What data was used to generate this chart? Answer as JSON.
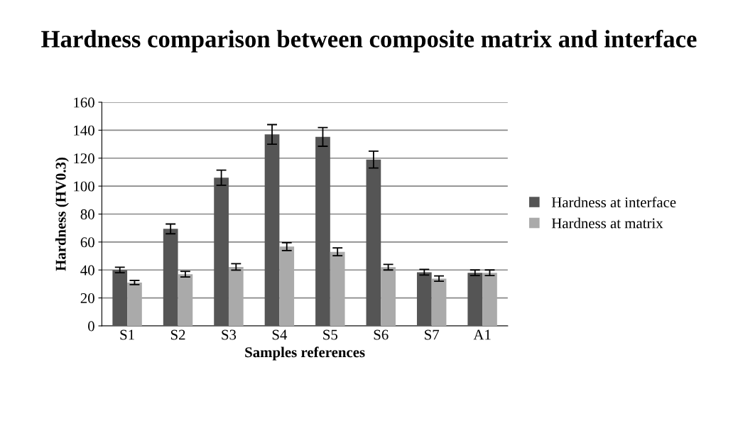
{
  "chart_data": {
    "type": "bar",
    "title": "Hardness comparison between composite matrix and interface",
    "xlabel": "Samples references",
    "ylabel": "Hardness (HV0.3)",
    "categories": [
      "S1",
      "S2",
      "S3",
      "S4",
      "S5",
      "S6",
      "S7",
      "A1"
    ],
    "series": [
      {
        "name": "Hardness at interface",
        "color": "#555555",
        "values": [
          40,
          69.4,
          106,
          137,
          135.2,
          119,
          38.4,
          38
        ],
        "errors": [
          2,
          3.5,
          5.4,
          7,
          6.7,
          6,
          2,
          2
        ]
      },
      {
        "name": "Hardness at matrix",
        "color": "#aaaaaa",
        "values": [
          31,
          37,
          42.2,
          56.7,
          53,
          42,
          33.8,
          38
        ],
        "errors": [
          1.5,
          2,
          2.3,
          2.8,
          2.8,
          2,
          1.9,
          2
        ]
      }
    ],
    "ylim": [
      0,
      160
    ],
    "yticks": [
      0,
      20,
      40,
      60,
      80,
      100,
      120,
      140,
      160
    ],
    "grid": "y",
    "legend": "right"
  }
}
